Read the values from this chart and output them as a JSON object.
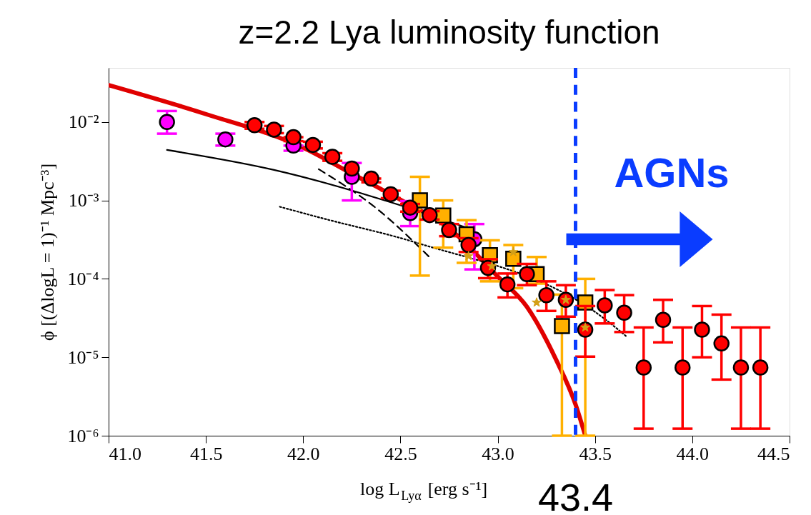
{
  "chart_data": {
    "type": "scatter",
    "title": "z=2.2 Lya luminosity function",
    "xlabel": "log L$_{Lyα}$ [erg s⁻¹]",
    "ylabel": "ϕ [(ΔlogL = 1)⁻¹ Mpc⁻³]",
    "log": "y",
    "grid": false,
    "xlim": [
      41.0,
      44.5
    ],
    "xticks": [
      {
        "value": 41,
        "label": "41.0"
      },
      41.5,
      {
        "value": 42,
        "label": "42.0"
      },
      42.5,
      {
        "value": 43,
        "label": "43.0"
      },
      43.5,
      {
        "value": 44,
        "label": "44.0"
      },
      44.5
    ],
    "ylim": [
      1e-06,
      0.049
    ],
    "yticks": [
      {
        "value": 1e-06,
        "label": "10⁻⁶"
      },
      {
        "value": 1e-05,
        "label": "10⁻⁵"
      },
      {
        "value": 0.0001,
        "label": "10⁻⁴"
      },
      {
        "value": 0.001,
        "label": "10⁻³"
      },
      {
        "value": 0.01,
        "label": "10⁻²"
      }
    ],
    "ref_lines": [
      {
        "axis": "x",
        "value": 43.4,
        "label": "43.4",
        "color": "#0a3cff",
        "line_style": "dashed"
      }
    ],
    "annotations": [
      "AGNs"
    ],
    "series": [
      {
        "type": "line",
        "color": "#e00000",
        "line_style": "solid",
        "x": [
          41.0,
          41.5,
          42.0,
          42.25,
          42.5,
          42.75,
          43.0,
          43.15,
          43.3,
          43.4,
          43.45
        ],
        "values": [
          0.0295,
          0.0126,
          0.0047,
          0.0022,
          0.00102,
          0.00044,
          0.000107,
          4.4e-05,
          9.3e-06,
          2.5e-06,
          1e-06
        ]
      },
      {
        "type": "line",
        "color": "#000000",
        "line_style": "solid",
        "x": [
          41.3,
          41.85,
          42.46,
          42.85
        ],
        "values": [
          0.0044,
          0.00245,
          0.00093,
          0.00044
        ]
      },
      {
        "type": "line",
        "color": "#000000",
        "line_style": "dashed",
        "x": [
          42.08,
          42.38,
          42.66
        ],
        "values": [
          0.0025,
          0.00078,
          0.000178
        ]
      },
      {
        "type": "line",
        "color": "#000000",
        "line_style": "dotted",
        "x": [
          41.88,
          42.09,
          42.58,
          43.56,
          43.66
        ],
        "values": [
          0.00083,
          0.0006,
          0.00029,
          2.95e-05,
          1.86e-05
        ]
      },
      {
        "type": "scatter",
        "marker": "circle",
        "color": "#ff00ff",
        "x": [
          41.3,
          41.6,
          41.95,
          42.25,
          42.55,
          42.88
        ],
        "values": [
          0.01,
          0.006,
          0.005,
          0.002,
          0.00069,
          0.00032
        ],
        "errors": [
          [
            0.0071,
            0.0138
          ],
          [
            0.005,
            0.0071
          ],
          [
            0.0043,
            0.005
          ],
          [
            0.001,
            0.003
          ],
          [
            0.00047,
            0.00098
          ],
          [
            0.000132,
            0.0005
          ]
        ]
      },
      {
        "type": "scatter",
        "marker": "square",
        "color": "#ffb000",
        "x": [
          42.6,
          42.72,
          42.84,
          42.96,
          43.08,
          43.2,
          43.33,
          43.45
        ],
        "values": [
          0.001,
          0.00064,
          0.00037,
          0.0002,
          0.00018,
          0.000115,
          2.5e-05,
          5e-05
        ],
        "errors": [
          [
            0.00011,
            0.002
          ],
          [
            0.00025,
            0.001
          ],
          [
            0.00016,
            0.00056
          ],
          [
            9.3e-05,
            0.00031
          ],
          [
            7.6e-05,
            0.00027
          ],
          [
            8.7e-05,
            0.00019
          ],
          [
            1e-06,
            6.3e-05
          ],
          [
            1e-06,
            0.0001
          ]
        ]
      },
      {
        "type": "scatter",
        "marker": "star",
        "color": "#d4a017",
        "x": [
          42.85,
          42.97,
          43.08,
          43.2,
          43.35,
          43.45
        ],
        "values": [
          0.000195,
          0.000145,
          0.00022,
          5e-05,
          5.4e-05,
          2.4e-05
        ]
      },
      {
        "type": "scatter",
        "marker": "circle",
        "color": "#ff0000",
        "x": [
          41.75,
          41.85,
          41.95,
          42.05,
          42.15,
          42.25,
          42.35,
          42.45,
          42.55,
          42.65,
          42.75,
          42.85,
          42.95,
          43.05,
          43.15,
          43.25,
          43.35,
          43.45,
          43.55,
          43.65,
          43.75,
          43.85,
          43.95,
          44.05,
          44.15,
          44.25,
          44.35
        ],
        "values": [
          0.0091,
          0.008,
          0.0064,
          0.0051,
          0.0036,
          0.00255,
          0.0019,
          0.0012,
          0.00081,
          0.00065,
          0.00042,
          0.00027,
          0.000138,
          8.5e-05,
          0.000115,
          6.2e-05,
          5.4e-05,
          2.25e-05,
          4.6e-05,
          3.7e-05,
          7.4e-06,
          3e-05,
          7.4e-06,
          2.25e-05,
          1.5e-05,
          7.4e-06,
          7.4e-06
        ],
        "errors": [
          [
            0.0082,
            0.01
          ],
          [
            0.0072,
            0.0089
          ],
          [
            0.0057,
            0.0064
          ],
          [
            0.0046,
            0.0056
          ],
          [
            0.0032,
            0.004
          ],
          null,
          [
            0.0017,
            0.0019
          ],
          [
            0.00107,
            0.00133
          ],
          [
            0.00072,
            0.0009
          ],
          [
            0.00057,
            0.00073
          ],
          [
            0.00035,
            0.0005
          ],
          [
            0.00022,
            0.00033
          ],
          [
            0.000102,
            0.000178
          ],
          [
            5.8e-05,
            0.000117
          ],
          [
            8.3e-05,
            0.000155
          ],
          [
            3.9e-05,
            9.3e-05
          ],
          [
            3.3e-05,
            8.3e-05
          ],
          [
            1.02e-05,
            4.5e-05
          ],
          [
            2.7e-05,
            7.2e-05
          ],
          [
            2.1e-05,
            6.2e-05
          ],
          [
            1.23e-06,
            2.4e-05
          ],
          [
            1.55e-05,
            5.4e-05
          ],
          [
            1.23e-06,
            2.4e-05
          ],
          [
            1e-05,
            4.5e-05
          ],
          [
            5.2e-06,
            3.5e-05
          ],
          [
            1.23e-06,
            2.4e-05
          ],
          [
            1.23e-06,
            2.4e-05
          ]
        ]
      }
    ]
  }
}
